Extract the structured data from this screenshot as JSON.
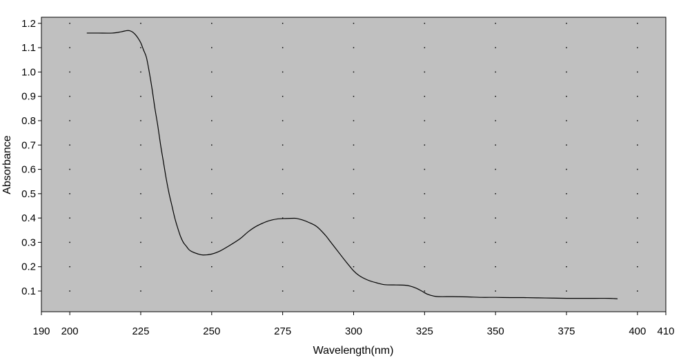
{
  "chart_data": {
    "type": "line",
    "title": "",
    "xlabel": "Wavelength(nm)",
    "ylabel": "Absorbance",
    "xlim": [
      190,
      410
    ],
    "ylim": [
      0.015,
      1.225
    ],
    "grid": "dotted",
    "background_color": "#c0c0c0",
    "line_color": "#000000",
    "x_ticks": [
      190,
      200,
      225,
      250,
      275,
      300,
      325,
      350,
      375,
      400,
      410
    ],
    "x_tick_labels": [
      "190",
      "200",
      "225",
      "250",
      "275",
      "300",
      "325",
      "350",
      "375",
      "400",
      "410"
    ],
    "y_ticks": [
      0.1,
      0.2,
      0.3,
      0.4,
      0.5,
      0.6,
      0.7,
      0.8,
      0.9,
      1.0,
      1.1,
      1.2
    ],
    "y_tick_labels": [
      "0.1",
      "0.2",
      "0.3",
      "0.4",
      "0.5",
      "0.6",
      "0.7",
      "0.8",
      "0.9",
      "1.0",
      "1.1",
      "1.2"
    ],
    "series": [
      {
        "x": [
          206,
          210,
          215,
          218,
          220,
          221,
          222,
          223,
          224,
          225,
          226,
          227,
          228,
          229,
          230,
          231,
          232,
          233,
          234,
          235,
          236,
          237,
          238,
          239,
          240,
          241,
          242,
          243,
          245,
          247,
          250,
          253,
          256,
          260,
          263,
          266,
          270,
          273,
          276,
          279,
          280,
          282,
          284,
          287,
          290,
          292,
          295,
          297,
          300,
          302,
          305,
          308,
          311,
          315,
          318,
          320,
          322,
          324,
          326,
          328,
          330,
          335,
          340,
          345,
          350,
          355,
          360,
          365,
          370,
          375,
          380,
          385,
          390,
          393
        ],
        "y": [
          1.16,
          1.16,
          1.16,
          1.165,
          1.17,
          1.17,
          1.165,
          1.155,
          1.14,
          1.12,
          1.09,
          1.06,
          1.0,
          0.93,
          0.85,
          0.78,
          0.7,
          0.63,
          0.56,
          0.5,
          0.45,
          0.4,
          0.36,
          0.325,
          0.3,
          0.285,
          0.27,
          0.262,
          0.253,
          0.248,
          0.252,
          0.265,
          0.285,
          0.315,
          0.345,
          0.368,
          0.388,
          0.396,
          0.398,
          0.399,
          0.398,
          0.392,
          0.383,
          0.365,
          0.33,
          0.3,
          0.255,
          0.225,
          0.183,
          0.163,
          0.145,
          0.134,
          0.126,
          0.125,
          0.124,
          0.12,
          0.112,
          0.1,
          0.087,
          0.08,
          0.077,
          0.077,
          0.076,
          0.074,
          0.074,
          0.073,
          0.073,
          0.072,
          0.071,
          0.07,
          0.07,
          0.07,
          0.07,
          0.068
        ]
      }
    ]
  }
}
